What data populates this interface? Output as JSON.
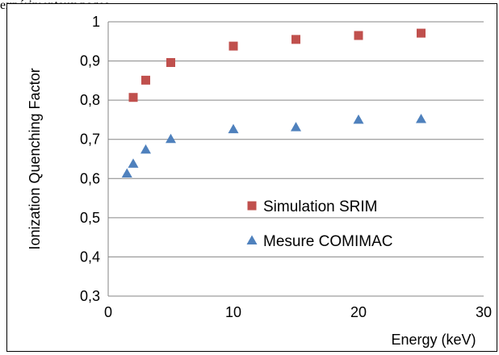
{
  "page_header_text": "expérimentaux pages",
  "chart_data": {
    "type": "scatter",
    "title": "",
    "xlabel": "Energy (keV)",
    "ylabel": "Ionization Quenching Factor",
    "xlim": [
      0,
      30
    ],
    "ylim": [
      0.3,
      1
    ],
    "x_ticks": [
      0,
      10,
      20,
      30
    ],
    "x_tick_labels": [
      "0",
      "10",
      "20",
      "30"
    ],
    "y_ticks": [
      0.3,
      0.4,
      0.5,
      0.6,
      0.7,
      0.8,
      0.9,
      1
    ],
    "y_tick_labels": [
      "0,3",
      "0,4",
      "0,5",
      "0,6",
      "0,7",
      "0,8",
      "0,9",
      "1"
    ],
    "grid": "horizontal",
    "legend_position": "lower-right",
    "series": [
      {
        "name": "Simulation SRIM",
        "marker": "square",
        "color": "#C0504D",
        "x": [
          2,
          3,
          5,
          10,
          15,
          20,
          25
        ],
        "y": [
          0.807,
          0.851,
          0.896,
          0.938,
          0.955,
          0.965,
          0.971
        ]
      },
      {
        "name": "Mesure COMIMAC",
        "marker": "triangle",
        "color": "#4F81BD",
        "x": [
          1.5,
          2,
          3,
          5,
          10,
          15,
          20,
          25
        ],
        "y": [
          0.613,
          0.638,
          0.674,
          0.701,
          0.726,
          0.731,
          0.75,
          0.752
        ]
      }
    ]
  }
}
